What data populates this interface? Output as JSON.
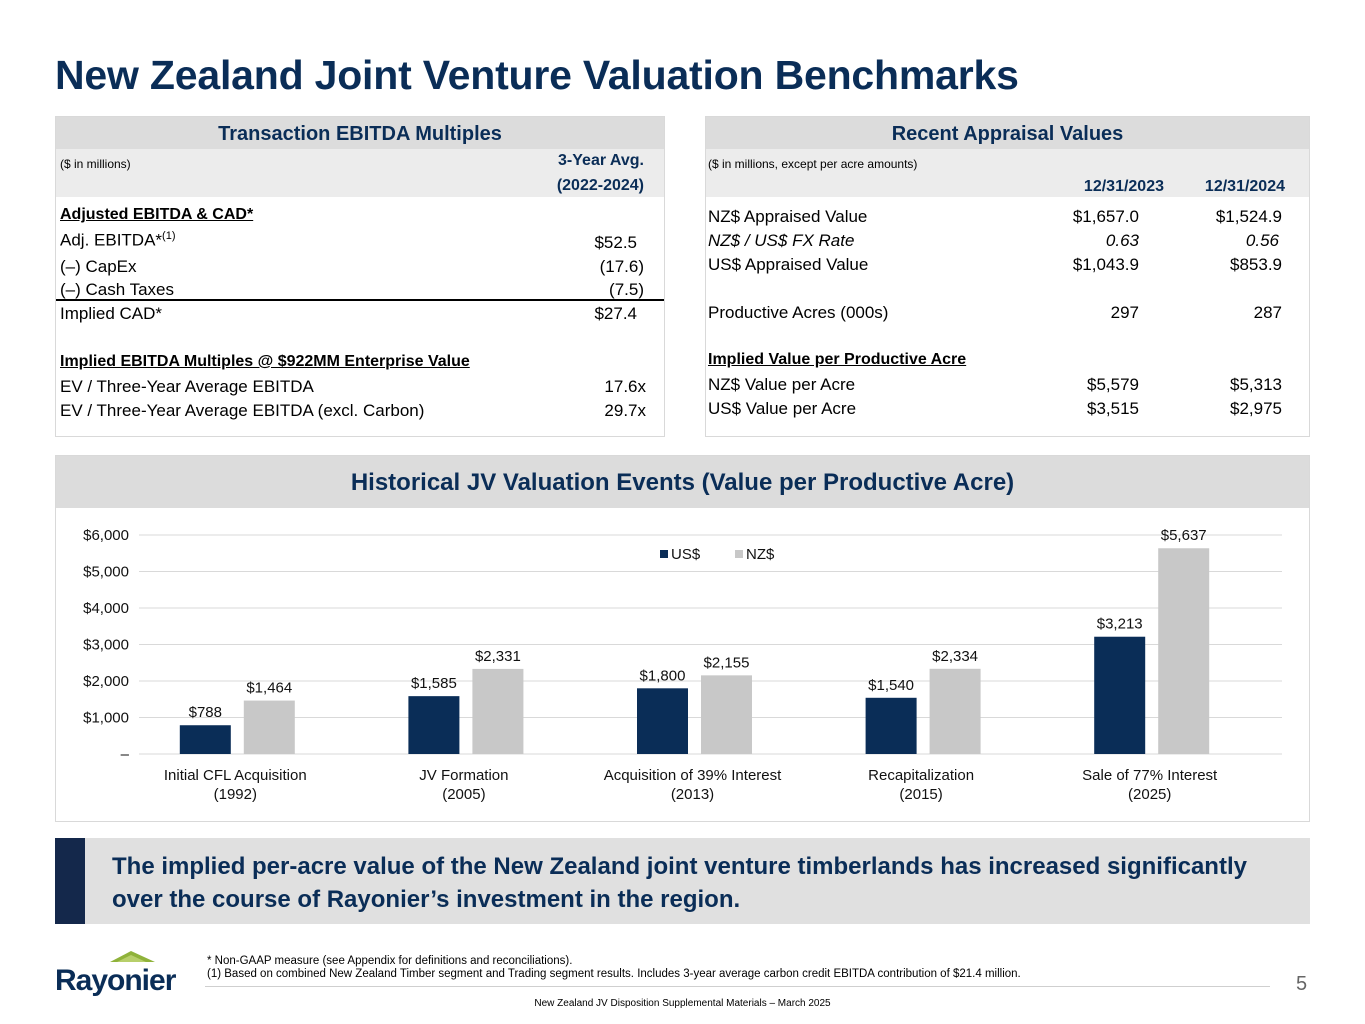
{
  "title": "New Zealand Joint Venture Valuation Benchmarks",
  "left_table": {
    "heading": "Transaction EBITDA Multiples",
    "units": "($ in millions)",
    "col_header_1": "3-Year Avg.",
    "col_header_2": "(2022-2024)",
    "section1": "Adjusted EBITDA & CAD*",
    "adj_ebitda_label": "Adj. EBITDA*",
    "adj_ebitda_sup": "(1)",
    "adj_ebitda_value": "$52.5",
    "capex_label": "(–) CapEx",
    "capex_value": "(17.6)",
    "taxes_label": "(–) Cash Taxes",
    "taxes_value": "(7.5)",
    "cad_label": "Implied CAD*",
    "cad_value": "$27.4",
    "section2": "Implied EBITDA Multiples @ $922MM Enterprise Value",
    "ev1_label": "EV / Three-Year Average EBITDA",
    "ev1_value": "17.6x",
    "ev2_label": "EV / Three-Year Average EBITDA (excl. Carbon)",
    "ev2_value": "29.7x"
  },
  "right_table": {
    "heading": "Recent Appraisal Values",
    "units": "($ in millions, except per acre amounts)",
    "col1": "12/31/2023",
    "col2": "12/31/2024",
    "rows": [
      {
        "label": "NZ$ Appraised Value",
        "v1": "$1,657.0",
        "v2": "$1,524.9"
      },
      {
        "label": "NZ$ / US$ FX Rate",
        "v1": "0.63",
        "v2": "0.56"
      },
      {
        "label": "US$ Appraised Value",
        "v1": "$1,043.9",
        "v2": "$853.9"
      },
      {
        "label": "Productive Acres (000s)",
        "v1": "297",
        "v2": "287"
      },
      {
        "label": "NZ$ Value per Acre",
        "v1": "$5,579",
        "v2": "$5,313"
      },
      {
        "label": "US$ Value per Acre",
        "v1": "$3,515",
        "v2": "$2,975"
      }
    ],
    "section": "Implied Value per Productive Acre"
  },
  "chart_heading": "Historical JV Valuation Events (Value per Productive Acre)",
  "chart_data": {
    "type": "bar",
    "categories": [
      [
        "Initial CFL Acquisition",
        "(1992)"
      ],
      [
        "JV Formation",
        "(2005)"
      ],
      [
        "Acquisition of 39% Interest",
        "(2013)"
      ],
      [
        "Recapitalization",
        "(2015)"
      ],
      [
        "Sale of 77% Interest",
        "(2025)"
      ]
    ],
    "series": [
      {
        "name": "US$",
        "color": "#0a2d57",
        "values": [
          788,
          1585,
          1800,
          1540,
          3213
        ]
      },
      {
        "name": "NZ$",
        "color": "#c8c8c8",
        "values": [
          1464,
          2331,
          2155,
          2334,
          5637
        ]
      }
    ],
    "ylim": [
      0,
      6000
    ],
    "yticks": [
      {
        "v": 0,
        "label": "–"
      },
      {
        "v": 1000,
        "label": "$1,000"
      },
      {
        "v": 2000,
        "label": "$2,000"
      },
      {
        "v": 3000,
        "label": "$3,000"
      },
      {
        "v": 4000,
        "label": "$4,000"
      },
      {
        "v": 5000,
        "label": "$5,000"
      },
      {
        "v": 6000,
        "label": "$6,000"
      }
    ],
    "legend_position": "top-center",
    "grid": true
  },
  "callout": "The implied per-acre value of the New Zealand joint venture timberlands has increased significantly over the course of Rayonier’s investment in the region.",
  "footnote1": "* Non-GAAP measure (see Appendix for definitions and reconciliations).",
  "footnote2": "(1)  Based on combined New Zealand Timber segment and Trading segment results. Includes 3-year average carbon credit EBITDA contribution of $21.4 million.",
  "footer_center": "New Zealand JV Disposition Supplemental Materials – March 2025",
  "page_number": "5",
  "logo_text": "Rayonier"
}
